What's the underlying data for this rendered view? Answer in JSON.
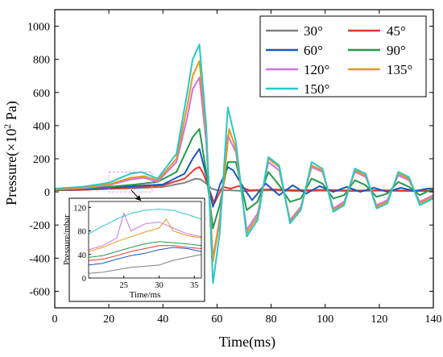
{
  "chart_data": [
    {
      "type": "line",
      "xlabel": "Time(ms)",
      "ylabel_main": "Pressure(×10",
      "ylabel_sup": "2",
      "ylabel_unit": " Pa)",
      "xlim": [
        0,
        140
      ],
      "ylim": [
        -700,
        1100
      ],
      "xticks": [
        0,
        20,
        40,
        60,
        80,
        100,
        120,
        140
      ],
      "yticks": [
        -600,
        -400,
        -200,
        0,
        200,
        400,
        600,
        800,
        1000
      ],
      "grid": false,
      "legend_position": "top-right",
      "series": [
        {
          "name": "30°",
          "color": "#808080",
          "x": [
            0,
            10,
            20,
            30,
            40,
            48,
            52,
            54,
            56,
            58,
            60,
            65,
            70,
            80,
            90,
            100,
            110,
            120,
            130,
            140
          ],
          "y": [
            10,
            12,
            18,
            22,
            30,
            55,
            80,
            75,
            50,
            20,
            10,
            10,
            5,
            10,
            5,
            8,
            5,
            8,
            5,
            5
          ]
        },
        {
          "name": "45°",
          "color": "#e8352a",
          "x": [
            0,
            10,
            20,
            30,
            40,
            48,
            52,
            53.5,
            55,
            57,
            59,
            62,
            65,
            68,
            72,
            80,
            90,
            100,
            110,
            120,
            130,
            140
          ],
          "y": [
            10,
            12,
            20,
            28,
            40,
            80,
            140,
            150,
            110,
            20,
            -70,
            30,
            20,
            35,
            10,
            15,
            10,
            12,
            8,
            10,
            8,
            8
          ]
        },
        {
          "name": "60°",
          "color": "#1a56c4",
          "x": [
            0,
            10,
            20,
            30,
            40,
            48,
            51,
            53.5,
            56,
            58.5,
            61,
            64,
            66,
            70,
            73,
            78,
            83,
            88,
            93,
            98,
            103,
            108,
            113,
            118,
            123,
            128,
            133,
            138,
            140
          ],
          "y": [
            12,
            15,
            25,
            35,
            45,
            110,
            200,
            260,
            100,
            -90,
            40,
            150,
            130,
            20,
            -50,
            50,
            -20,
            40,
            -10,
            35,
            0,
            30,
            0,
            25,
            0,
            25,
            5,
            20,
            20
          ]
        },
        {
          "name": "90°",
          "color": "#1f9b4a",
          "x": [
            0,
            10,
            20,
            30,
            38,
            45,
            49,
            51,
            53.5,
            56,
            58.5,
            61,
            64,
            67,
            71,
            75,
            79,
            83,
            87,
            91,
            95,
            99,
            103,
            107,
            111,
            115,
            119,
            123,
            127,
            131,
            135,
            140
          ],
          "y": [
            12,
            18,
            30,
            45,
            60,
            120,
            260,
            330,
            380,
            120,
            -220,
            -80,
            180,
            180,
            -110,
            -60,
            120,
            40,
            -60,
            -40,
            80,
            50,
            -40,
            -20,
            70,
            40,
            -30,
            -10,
            60,
            30,
            -20,
            20
          ]
        },
        {
          "name": "120°",
          "color": "#cc72e0",
          "x": [
            0,
            10,
            20,
            28,
            33,
            38,
            45,
            49,
            51,
            53.5,
            56,
            58.5,
            61,
            64,
            67,
            71,
            75,
            79,
            83,
            87,
            91,
            95,
            99,
            103,
            107,
            111,
            115,
            119,
            123,
            127,
            131,
            135,
            140
          ],
          "y": [
            15,
            22,
            40,
            75,
            85,
            60,
            180,
            450,
            620,
            690,
            300,
            -400,
            -160,
            340,
            240,
            -230,
            -130,
            180,
            130,
            -170,
            -90,
            150,
            120,
            -100,
            -60,
            120,
            90,
            -80,
            -50,
            100,
            70,
            -60,
            -20
          ]
        },
        {
          "name": "135°",
          "color": "#e8961e",
          "x": [
            0,
            10,
            20,
            28,
            33,
            38,
            45,
            49,
            51,
            53.5,
            56,
            58.5,
            61,
            64.5,
            67,
            71,
            75,
            79,
            83,
            87,
            91,
            95,
            99,
            103,
            107,
            111,
            115,
            119,
            123,
            127,
            131,
            135,
            140
          ],
          "y": [
            15,
            25,
            45,
            85,
            95,
            70,
            200,
            520,
            700,
            790,
            350,
            -420,
            -180,
            380,
            260,
            -250,
            -150,
            200,
            150,
            -180,
            -100,
            160,
            130,
            -110,
            -70,
            130,
            100,
            -90,
            -60,
            110,
            80,
            -70,
            -30
          ]
        },
        {
          "name": "150°",
          "color": "#28c8c8",
          "x": [
            0,
            10,
            20,
            28,
            32,
            38,
            45,
            49,
            51,
            53.5,
            56,
            58.5,
            61,
            64,
            67,
            71,
            75,
            79,
            83,
            87,
            91,
            95,
            99,
            103,
            107,
            111,
            115,
            119,
            123,
            127,
            131,
            135,
            140
          ],
          "y": [
            20,
            30,
            55,
            110,
            120,
            80,
            230,
            600,
            800,
            890,
            400,
            -550,
            -250,
            510,
            300,
            -270,
            -170,
            210,
            160,
            -190,
            -110,
            180,
            140,
            -120,
            -80,
            140,
            110,
            -100,
            -70,
            120,
            90,
            -80,
            -40
          ]
        }
      ],
      "legend_entries": [
        "30°",
        "45°",
        "60°",
        "90°",
        "120°",
        "135°",
        "150°"
      ]
    },
    {
      "type": "line",
      "role": "inset",
      "xlabel": "Time/ms",
      "ylabel": "Pressure/mbar",
      "xlim": [
        20,
        36
      ],
      "ylim": [
        0,
        130
      ],
      "xticks": [
        25,
        30,
        35
      ],
      "yticks": [
        0,
        40,
        80,
        120
      ],
      "series": [
        {
          "color": "#808080",
          "x": [
            20,
            22,
            24,
            26,
            28,
            30,
            32,
            34,
            36
          ],
          "y": [
            8,
            10,
            14,
            18,
            20,
            22,
            30,
            35,
            40
          ]
        },
        {
          "color": "#e8352a",
          "x": [
            20,
            22,
            24,
            26,
            28,
            30,
            32,
            34,
            36
          ],
          "y": [
            30,
            32,
            38,
            45,
            50,
            55,
            55,
            52,
            50
          ]
        },
        {
          "color": "#1a56c4",
          "x": [
            20,
            22,
            24,
            26,
            28,
            30,
            32,
            34,
            36
          ],
          "y": [
            22,
            25,
            32,
            38,
            42,
            48,
            52,
            50,
            45
          ]
        },
        {
          "color": "#1f9b4a",
          "x": [
            20,
            22,
            24,
            26,
            28,
            30,
            32,
            34,
            36
          ],
          "y": [
            35,
            38,
            45,
            52,
            58,
            62,
            60,
            58,
            55
          ]
        },
        {
          "color": "#cc72e0",
          "x": [
            20,
            22,
            24,
            25,
            26,
            28,
            30,
            32,
            34,
            36
          ],
          "y": [
            48,
            55,
            68,
            110,
            80,
            92,
            95,
            85,
            75,
            70
          ]
        },
        {
          "color": "#e8961e",
          "x": [
            20,
            22,
            24,
            26,
            28,
            30,
            31,
            32,
            34,
            36
          ],
          "y": [
            45,
            52,
            62,
            70,
            78,
            85,
            100,
            80,
            72,
            68
          ]
        },
        {
          "color": "#28c8c8",
          "x": [
            20,
            22,
            24,
            26,
            28,
            30,
            32,
            34,
            36
          ],
          "y": [
            75,
            88,
            100,
            110,
            115,
            117,
            115,
            108,
            100
          ]
        }
      ]
    }
  ]
}
